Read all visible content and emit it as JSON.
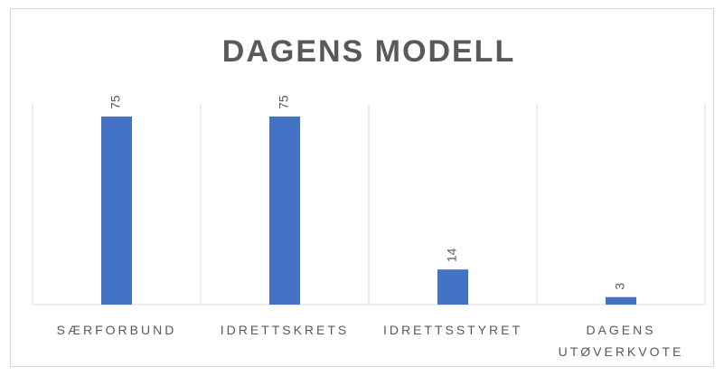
{
  "chart_data": {
    "type": "bar",
    "title": "DAGENS MODELL",
    "categories": [
      "SÆRFORBUND",
      "IDRETTSKRETS",
      "IDRETTSSTYRET",
      "DAGENS UTØVERKVOTE"
    ],
    "values": [
      75,
      75,
      14,
      3
    ],
    "color": "#4472c4",
    "ylim": [
      0,
      80
    ],
    "grid": true
  }
}
